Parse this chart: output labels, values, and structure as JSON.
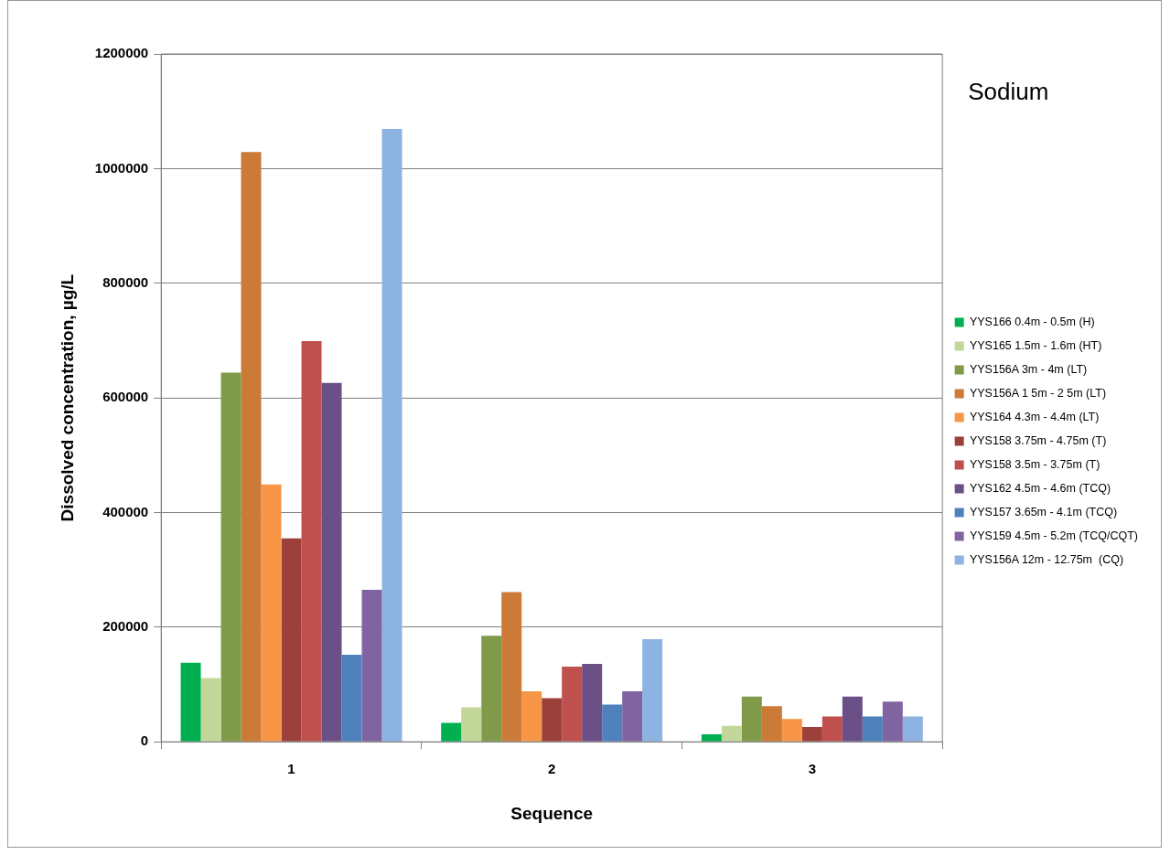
{
  "chart_data": {
    "type": "bar",
    "title": "Sodium",
    "xlabel": "Sequence",
    "ylabel": "Dissolved concentration, µg/L",
    "categories": [
      "1",
      "2",
      "3"
    ],
    "series": [
      {
        "name": "YYS166 0.4m - 0.5m (H)",
        "color": "#00b050",
        "values": [
          138000,
          33000,
          13000
        ]
      },
      {
        "name": "YYS165 1.5m - 1.6m (HT)",
        "color": "#c4d79b",
        "values": [
          111000,
          60000,
          28000
        ]
      },
      {
        "name": "YYS156A 3m - 4m (LT)",
        "color": "#7f9a48",
        "values": [
          644000,
          185000,
          79000
        ]
      },
      {
        "name": "YYS156A 1 5m - 2 5m (LT)",
        "color": "#cb7a38",
        "values": [
          1029000,
          261000,
          62000
        ]
      },
      {
        "name": "YYS164 4.3m - 4.4m (LT)",
        "color": "#f79646",
        "values": [
          449000,
          88000,
          40000
        ]
      },
      {
        "name": "YYS158 3.75m - 4.75m (T)",
        "color": "#9c403c",
        "values": [
          355000,
          76000,
          26000
        ]
      },
      {
        "name": "YYS158 3.5m - 3.75m (T)",
        "color": "#c0504d",
        "values": [
          699000,
          131000,
          44000
        ]
      },
      {
        "name": "YYS162 4.5m - 4.6m (TCQ)",
        "color": "#6a5086",
        "values": [
          626000,
          136000,
          79000
        ]
      },
      {
        "name": "YYS157 3.65m - 4.1m (TCQ)",
        "color": "#4f81bd",
        "values": [
          152000,
          65000,
          44000
        ]
      },
      {
        "name": "YYS159 4.5m - 5.2m (TCQ/CQT)",
        "color": "#8064a2",
        "values": [
          265000,
          88000,
          70000
        ]
      },
      {
        "name": "YYS156A 12m - 12.75m  (CQ)",
        "color": "#8db3e2",
        "values": [
          1069000,
          179000,
          44000
        ]
      }
    ],
    "ylim": [
      0,
      1200000
    ],
    "yticks": [
      0,
      200000,
      400000,
      600000,
      800000,
      1000000,
      1200000
    ],
    "grid": "y",
    "legend": "right"
  }
}
